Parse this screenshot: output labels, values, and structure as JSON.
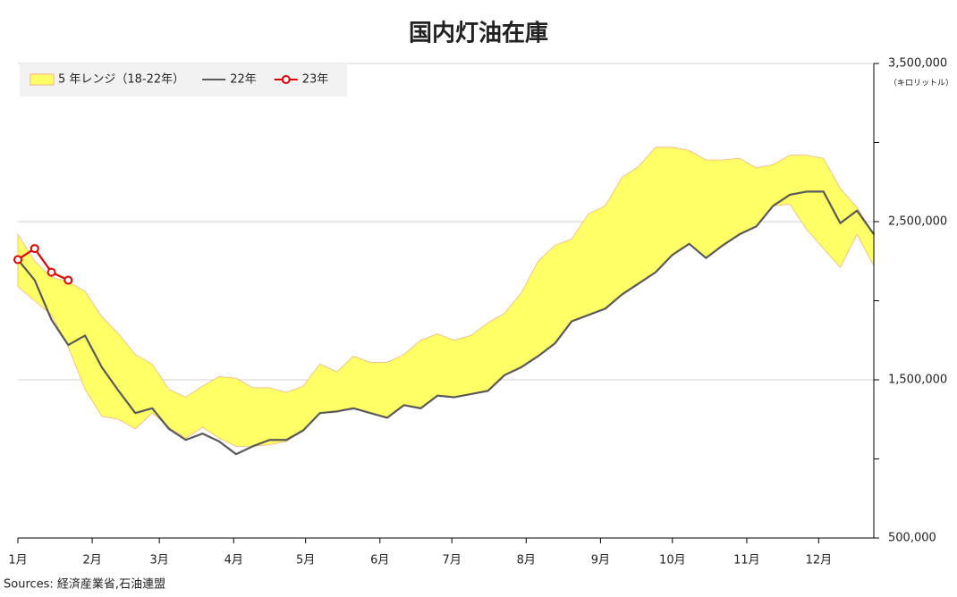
{
  "chart_data": {
    "type": "line",
    "title": "国内灯油在庫",
    "source": "Sources: 経済産業省,石油連盟",
    "y_unit_label": "（キロリットル）",
    "x": [
      0,
      7,
      14,
      21,
      28,
      35,
      42,
      49,
      56,
      63,
      70,
      77,
      84,
      91,
      98,
      105,
      112,
      119,
      126,
      133,
      140,
      147,
      154,
      161,
      168,
      175,
      182,
      189,
      196,
      203,
      210,
      217,
      224,
      231,
      238,
      245,
      252,
      259,
      266,
      273,
      280,
      287,
      294,
      301,
      308,
      315,
      322,
      329,
      336,
      343,
      350,
      357
    ],
    "xlim": [
      0,
      357
    ],
    "xticks": [
      {
        "value": 0,
        "label": "1月"
      },
      {
        "value": 31,
        "label": "2月"
      },
      {
        "value": 59,
        "label": "3月"
      },
      {
        "value": 90,
        "label": "4月"
      },
      {
        "value": 120,
        "label": "5月"
      },
      {
        "value": 151,
        "label": "6月"
      },
      {
        "value": 181,
        "label": "7月"
      },
      {
        "value": 212,
        "label": "8月"
      },
      {
        "value": 243,
        "label": "9月"
      },
      {
        "value": 273,
        "label": "10月"
      },
      {
        "value": 304,
        "label": "11月"
      },
      {
        "value": 334,
        "label": "12月"
      }
    ],
    "ylim": [
      500000,
      3500000
    ],
    "yticks": [
      {
        "value": 500000,
        "label": "500,000"
      },
      {
        "value": 1500000,
        "label": "1,500,000"
      },
      {
        "value": 2500000,
        "label": "2,500,000"
      },
      {
        "value": 3500000,
        "label": "3,500,000"
      }
    ],
    "minor_yticks": [
      1000000,
      2000000,
      3000000
    ],
    "grid": true,
    "legend": "upper left",
    "series": [
      {
        "name": "5 年レンジ（18-22年）",
        "color": "#ffff66",
        "edgecolor": "#f4b183",
        "upper": [
          2420000,
          2250000,
          2150000,
          2120000,
          2060000,
          1900000,
          1790000,
          1660000,
          1600000,
          1440000,
          1390000,
          1460000,
          1520000,
          1510000,
          1450000,
          1450000,
          1420000,
          1460000,
          1600000,
          1550000,
          1650000,
          1610000,
          1610000,
          1660000,
          1750000,
          1790000,
          1750000,
          1780000,
          1860000,
          1920000,
          2050000,
          2250000,
          2350000,
          2390000,
          2550000,
          2600000,
          2780000,
          2850000,
          2970000,
          2970000,
          2950000,
          2890000,
          2890000,
          2900000,
          2840000,
          2860000,
          2920000,
          2920000,
          2900000,
          2710000,
          2590000,
          2420000
        ],
        "lower": [
          2090000,
          2000000,
          1910000,
          1710000,
          1440000,
          1270000,
          1250000,
          1190000,
          1290000,
          1200000,
          1130000,
          1200000,
          1130000,
          1080000,
          1080000,
          1090000,
          1110000,
          1180000,
          1290000,
          1300000,
          1320000,
          1290000,
          1260000,
          1340000,
          1320000,
          1400000,
          1390000,
          1410000,
          1430000,
          1530000,
          1580000,
          1650000,
          1730000,
          1870000,
          1910000,
          1950000,
          2040000,
          2110000,
          2180000,
          2290000,
          2360000,
          2270000,
          2350000,
          2420000,
          2470000,
          2600000,
          2610000,
          2450000,
          2330000,
          2210000,
          2420000,
          2220000
        ]
      },
      {
        "name": "22年",
        "color": "#595959",
        "values": [
          2260000,
          2130000,
          1880000,
          1720000,
          1780000,
          1580000,
          1430000,
          1290000,
          1320000,
          1190000,
          1120000,
          1160000,
          1110000,
          1030000,
          1080000,
          1120000,
          1120000,
          1180000,
          1290000,
          1300000,
          1320000,
          1290000,
          1260000,
          1340000,
          1320000,
          1400000,
          1390000,
          1410000,
          1430000,
          1530000,
          1580000,
          1650000,
          1730000,
          1870000,
          1910000,
          1950000,
          2040000,
          2110000,
          2180000,
          2290000,
          2360000,
          2270000,
          2350000,
          2420000,
          2470000,
          2600000,
          2670000,
          2690000,
          2690000,
          2490000,
          2570000,
          2420000
        ]
      },
      {
        "name": "23年",
        "color": "#e00000",
        "marker": "circle",
        "values": [
          2260000,
          2330000,
          2180000,
          2130000,
          null,
          null,
          null,
          null,
          null,
          null,
          null,
          null,
          null,
          null,
          null,
          null,
          null,
          null,
          null,
          null,
          null,
          null,
          null,
          null,
          null,
          null,
          null,
          null,
          null,
          null,
          null,
          null,
          null,
          null,
          null,
          null,
          null,
          null,
          null,
          null,
          null,
          null,
          null,
          null,
          null,
          null,
          null,
          null,
          null,
          null,
          null,
          null
        ]
      }
    ]
  }
}
